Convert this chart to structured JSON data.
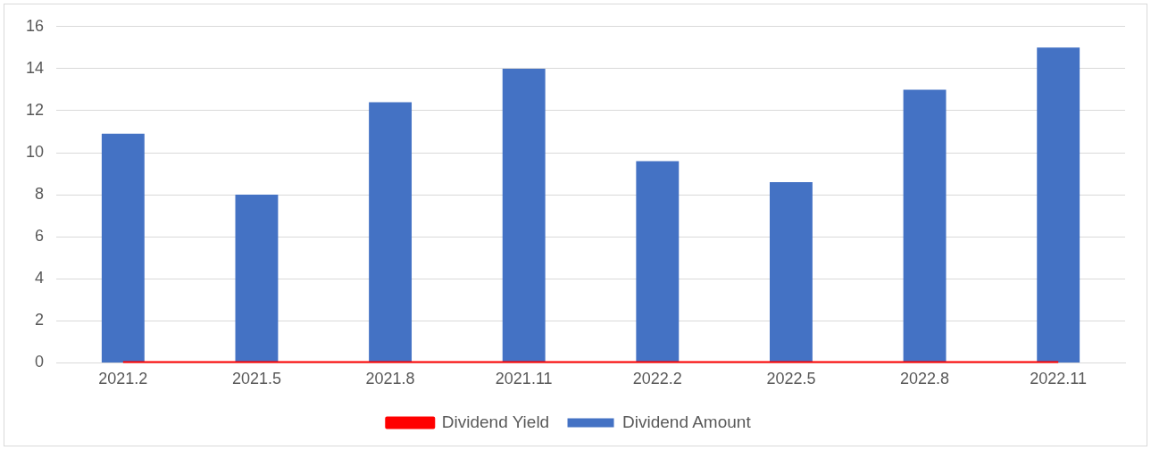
{
  "chart_data": {
    "type": "bar",
    "categories": [
      "2021.2",
      "2021.5",
      "2021.8",
      "2021.11",
      "2022.2",
      "2022.5",
      "2022.8",
      "2022.11"
    ],
    "series": [
      {
        "name": "Dividend Amount",
        "color": "#4472c4",
        "values": [
          10.9,
          8.0,
          12.4,
          14.0,
          9.6,
          8.6,
          13.0,
          15.0
        ]
      },
      {
        "name": "Dividend Yield",
        "type": "line",
        "color": "#ff0000",
        "values": [
          0,
          0,
          0,
          0,
          0,
          0,
          0,
          0
        ]
      }
    ],
    "ylim": [
      0,
      16
    ],
    "yticks": [
      0,
      2,
      4,
      6,
      8,
      10,
      12,
      14,
      16
    ],
    "grid": "y",
    "legend": "bottom",
    "marker": "none"
  }
}
